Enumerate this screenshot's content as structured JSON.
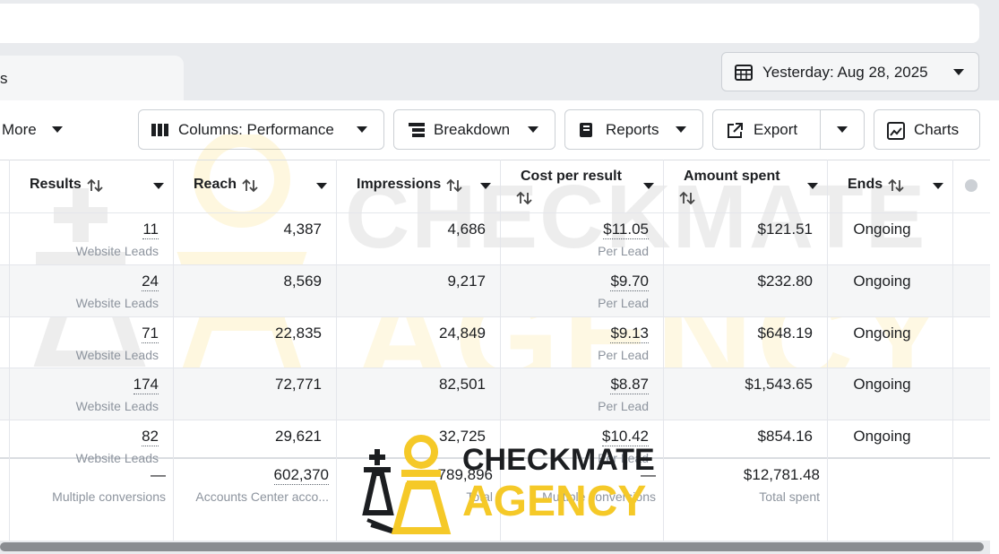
{
  "tab": "s",
  "date_button": "Yesterday: Aug 28, 2025",
  "toolbar": {
    "more": "More",
    "columns": "Columns: Performance",
    "breakdown": "Breakdown",
    "reports": "Reports",
    "export": "Export",
    "charts": "Charts"
  },
  "table": {
    "headers": [
      "Results",
      "Reach",
      "Impressions",
      "Cost per result",
      "Amount spent",
      "Ends"
    ],
    "rows": [
      {
        "results": "11",
        "results_sub": "Website Leads",
        "reach": "4,387",
        "impressions": "4,686",
        "cost": "$11.05",
        "cost_sub": "Per Lead",
        "amount": "$121.51",
        "ends": "Ongoing"
      },
      {
        "results": "24",
        "results_sub": "Website Leads",
        "reach": "8,569",
        "impressions": "9,217",
        "cost": "$9.70",
        "cost_sub": "Per Lead",
        "amount": "$232.80",
        "ends": "Ongoing"
      },
      {
        "results": "71",
        "results_sub": "Website Leads",
        "reach": "22,835",
        "impressions": "24,849",
        "cost": "$9.13",
        "cost_sub": "Per Lead",
        "amount": "$648.19",
        "ends": "Ongoing"
      },
      {
        "results": "174",
        "results_sub": "Website Leads",
        "reach": "72,771",
        "impressions": "82,501",
        "cost": "$8.87",
        "cost_sub": "Per Lead",
        "amount": "$1,543.65",
        "ends": "Ongoing"
      },
      {
        "results": "82",
        "results_sub": "Website Leads",
        "reach": "29,621",
        "impressions": "32,725",
        "cost": "$10.42",
        "cost_sub": "Per Lead",
        "amount": "$854.16",
        "ends": "Ongoing"
      }
    ],
    "footer": {
      "results": "—",
      "results_sub": "Multiple conversions",
      "reach": "602,370",
      "reach_sub": "Accounts Center acco...",
      "impressions": "789,896",
      "impressions_sub": "Total",
      "cost": "—",
      "cost_sub": "Multiple conversions",
      "amount": "$12,781.48",
      "amount_sub": "Total spent"
    }
  },
  "watermark": {
    "line1": "CHECKMATE",
    "line2": "AGENCY"
  }
}
